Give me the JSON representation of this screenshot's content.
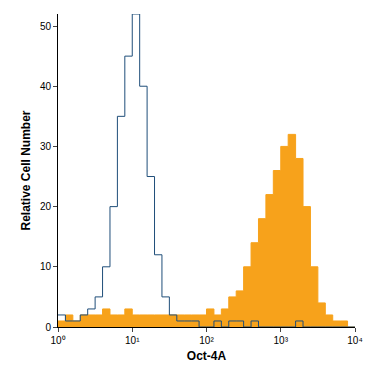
{
  "chart_data": {
    "type": "histogram",
    "xlabel": "Oct-4A",
    "ylabel": "Relative Cell Number",
    "log": "x",
    "grid": false,
    "xlim": [
      1,
      10000
    ],
    "ylim": [
      0,
      52
    ],
    "xticks": [
      {
        "value": 1,
        "label": "10⁰"
      },
      {
        "value": 10,
        "label": "10¹"
      },
      {
        "value": 100,
        "label": "10²"
      },
      {
        "value": 1000,
        "label": "10³"
      },
      {
        "value": 10000,
        "label": "10⁴"
      }
    ],
    "yticks": [
      0,
      10,
      20,
      30,
      40,
      50
    ],
    "bins": [
      1,
      1.259,
      1.585,
      1.995,
      2.512,
      3.162,
      3.981,
      5.012,
      6.31,
      7.943,
      10,
      12.59,
      15.85,
      19.95,
      25.12,
      31.62,
      39.81,
      50.12,
      63.1,
      79.43,
      100,
      125.9,
      158.5,
      199.5,
      251.2,
      316.2,
      398.1,
      501.2,
      631,
      794.3,
      1000,
      1259,
      1585,
      1995,
      2512,
      3162,
      3981,
      5012,
      6310,
      7943,
      10000
    ],
    "series": [
      {
        "type": "area",
        "color": "#f7a21b",
        "values": [
          1,
          2,
          1,
          2,
          2,
          2,
          3,
          2,
          2,
          3,
          2,
          2,
          2,
          2,
          2,
          2,
          2,
          2,
          2,
          2,
          3,
          2,
          3,
          5,
          6,
          10,
          14,
          18,
          22,
          26,
          30,
          32,
          28,
          20,
          10,
          4,
          2,
          1,
          1,
          0
        ]
      },
      {
        "type": "line",
        "color": "#1f4e79",
        "values": [
          2,
          1,
          1,
          2,
          3,
          5,
          10,
          20,
          35,
          45,
          52,
          40,
          25,
          12,
          5,
          2,
          1,
          1,
          1,
          0,
          0,
          1,
          0,
          1,
          1,
          0,
          1,
          0,
          0,
          0,
          0,
          0,
          1,
          0,
          0,
          0,
          0,
          0,
          0,
          0
        ]
      }
    ]
  }
}
